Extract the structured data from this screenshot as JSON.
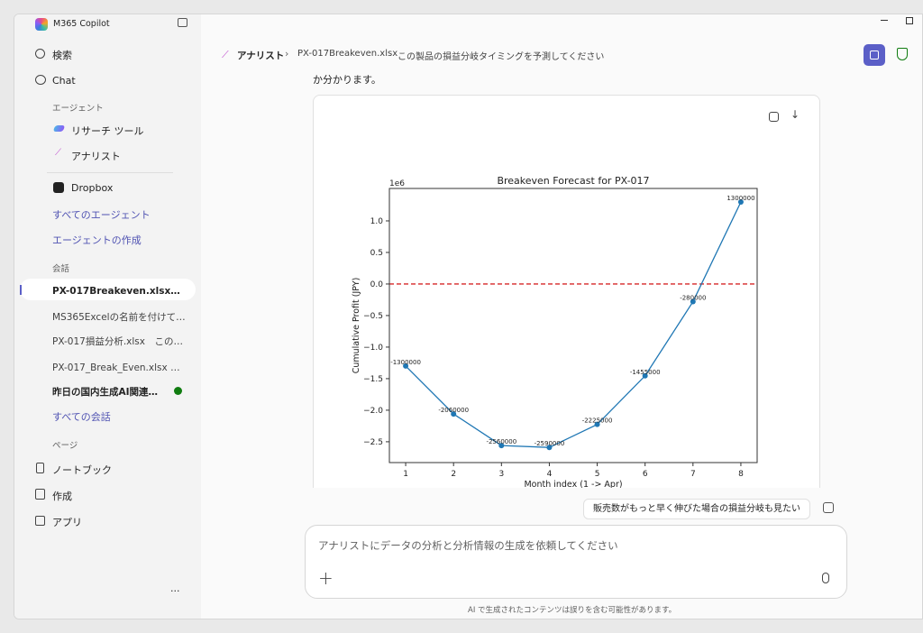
{
  "app": {
    "title": "M365 Copilot"
  },
  "sidebar": {
    "search": "検索",
    "chat": "Chat",
    "agents_header": "エージェント",
    "agents": [
      {
        "label": "リサーチ ツール"
      },
      {
        "label": "アナリスト"
      },
      {
        "label": "Dropbox"
      }
    ],
    "all_agents": "すべてのエージェント",
    "create_agent": "エージェントの作成",
    "conversations_header": "会話",
    "conversations": [
      {
        "label": "PX-017Breakeven.xlsx　この..."
      },
      {
        "label": "MS365Excelの名前を付けて保..."
      },
      {
        "label": "PX-017損益分析.xlsx　この製..."
      },
      {
        "label": "PX-017_Break_Even.xlsx からこ..."
      },
      {
        "label": "昨日の国内生成AI関連ニ..."
      }
    ],
    "all_conversations": "すべての会話",
    "pages_header": "ページ",
    "pages": [
      {
        "label": "ノートブック"
      },
      {
        "label": "作成"
      },
      {
        "label": "アプリ"
      }
    ],
    "more": "..."
  },
  "header": {
    "agent": "アナリスト",
    "file": "PX-017Breakeven.xlsx",
    "prompt": "この製品の損益分岐タイミングを予測してください"
  },
  "message": {
    "text": "か分かります。"
  },
  "suggestion": "販売数がもっと早く伸びた場合の損益分岐も見たい",
  "composer": {
    "placeholder": "アナリストにデータの分析と分析情報の生成を依頼してください"
  },
  "footer": "AI で生成されたコンテンツは誤りを含む可能性があります。",
  "colors": {
    "accent": "#5b5fc7",
    "line": "#1f77b4",
    "zero": "#d62728"
  },
  "chart_data": {
    "type": "line",
    "title": "Breakeven Forecast for PX-017",
    "xlabel": "Month index (1 -> Apr)",
    "ylabel": "Cumulative Profit (JPY)",
    "y_offset_label": "1e6",
    "x": [
      1,
      2,
      3,
      4,
      5,
      6,
      7,
      8
    ],
    "values": [
      -1300000,
      -2060000,
      -2560000,
      -2590000,
      -2225000,
      -1455000,
      -280000,
      1300000
    ],
    "labels": [
      "-1300000",
      "-2060000",
      "-2560000",
      "-2590000",
      "-2225000",
      "-1455000",
      "-280000",
      "1300000"
    ],
    "xticks": [
      "1",
      "2",
      "3",
      "4",
      "5",
      "6",
      "7",
      "8"
    ],
    "yticks": [
      1.0,
      0.5,
      0.0,
      -0.5,
      -1.0,
      -1.5,
      -2.0,
      -2.5
    ],
    "ytick_labels": [
      "1.0",
      "0.5",
      "0.0",
      "−0.5",
      "−1.0",
      "−1.5",
      "−2.0",
      "−2.5"
    ],
    "xlim": [
      0.66,
      8.34
    ],
    "ylim": [
      -2830000,
      1514000
    ],
    "reference_line": {
      "y": 0,
      "style": "dashed"
    },
    "grid": false
  }
}
